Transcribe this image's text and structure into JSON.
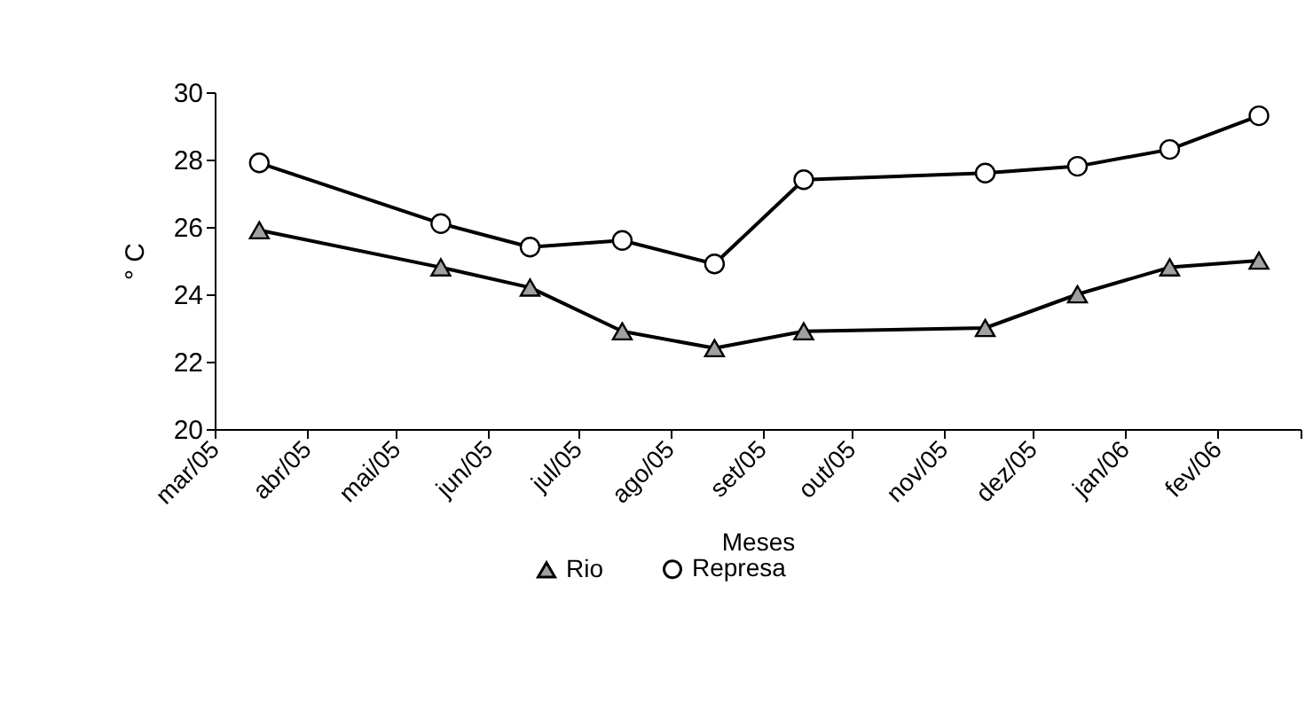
{
  "chart_data": {
    "type": "line",
    "xlabel": "Meses",
    "ylabel": "° C",
    "xlim": [
      "2005-03-01",
      "2006-03-01"
    ],
    "xticks": [
      {
        "value": "2005-03-01",
        "label": "mar/05"
      },
      {
        "value": "2005-04-01",
        "label": "abr/05"
      },
      {
        "value": "2005-05-01",
        "label": "mai/05"
      },
      {
        "value": "2005-06-01",
        "label": "jun/05"
      },
      {
        "value": "2005-07-01",
        "label": "jul/05"
      },
      {
        "value": "2005-08-01",
        "label": "ago/05"
      },
      {
        "value": "2005-09-01",
        "label": "set/05"
      },
      {
        "value": "2005-10-01",
        "label": "out/05"
      },
      {
        "value": "2005-11-01",
        "label": "nov/05"
      },
      {
        "value": "2005-12-01",
        "label": "dez/05"
      },
      {
        "value": "2006-01-01",
        "label": "jan/06"
      },
      {
        "value": "2006-02-01",
        "label": "fev/06"
      },
      {
        "value": "2006-03-01",
        "label": null
      }
    ],
    "ylim": [
      20,
      30
    ],
    "yticks": [
      20,
      22,
      24,
      26,
      28,
      30
    ],
    "grid": false,
    "legend": "bottom",
    "line_style": "solid",
    "x": [
      "2005-03-16",
      "2005-05-16",
      "2005-06-15",
      "2005-07-16",
      "2005-08-16",
      "2005-09-15",
      "2005-11-15",
      "2005-12-16",
      "2006-01-16",
      "2006-02-15"
    ],
    "series": [
      {
        "name": "Rio",
        "color": "#a0a0a0",
        "marker": "triangle",
        "values": [
          25.9,
          24.8,
          24.2,
          22.9,
          22.4,
          22.9,
          23.0,
          24.0,
          24.8,
          25.0
        ]
      },
      {
        "name": "Represa",
        "color": "#ffffff",
        "marker": "circle",
        "values": [
          27.9,
          26.1,
          25.4,
          25.6,
          24.9,
          27.4,
          27.6,
          27.8,
          28.3,
          29.3
        ]
      }
    ]
  }
}
